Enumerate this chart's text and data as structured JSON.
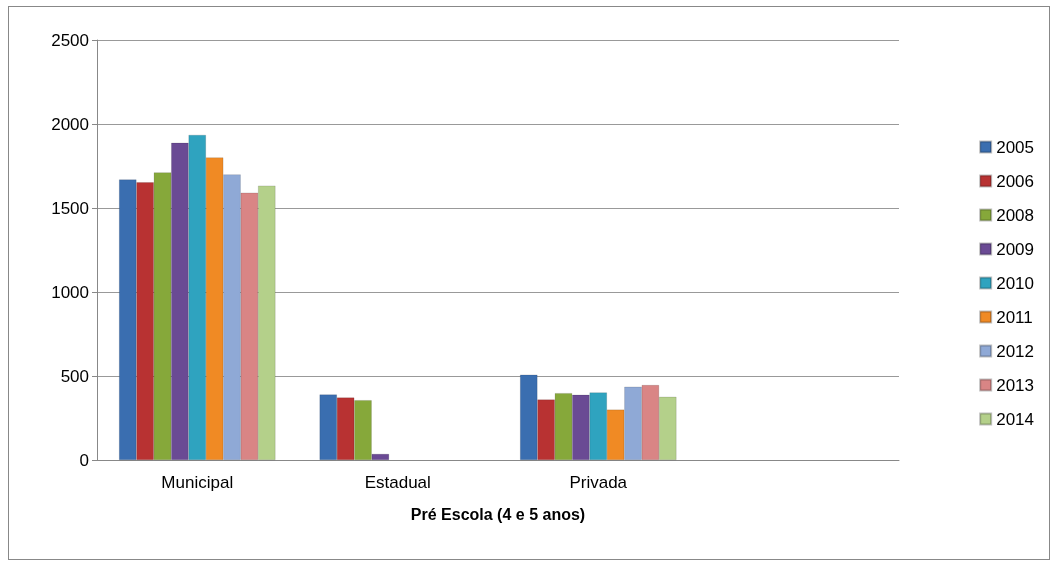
{
  "chart_data": {
    "type": "bar",
    "xlabel": "Pré Escola (4 e 5 anos)",
    "categories": [
      "Municipal",
      "Estadual",
      "Privada",
      null
    ],
    "series": [
      {
        "name": "2005",
        "color": "#3a6eb0",
        "values": [
          1670,
          390,
          508,
          null
        ]
      },
      {
        "name": "2006",
        "color": "#b83232",
        "values": [
          1653,
          372,
          360,
          null
        ]
      },
      {
        "name": "2008",
        "color": "#86a83a",
        "values": [
          1712,
          356,
          398,
          null
        ]
      },
      {
        "name": "2009",
        "color": "#6a4a94",
        "values": [
          1888,
          36,
          388,
          null
        ]
      },
      {
        "name": "2010",
        "color": "#2fa3bf",
        "values": [
          1935,
          null,
          402,
          null
        ]
      },
      {
        "name": "2011",
        "color": "#f08a24",
        "values": [
          1801,
          null,
          300,
          null
        ]
      },
      {
        "name": "2012",
        "color": "#8fa9d6",
        "values": [
          1700,
          null,
          436,
          null
        ]
      },
      {
        "name": "2013",
        "color": "#d98585",
        "values": [
          1591,
          null,
          446,
          null
        ]
      },
      {
        "name": "2014",
        "color": "#b4d08a",
        "values": [
          1633,
          null,
          376,
          null
        ]
      }
    ],
    "ylim": [
      0,
      2500
    ],
    "yticks": [
      0,
      500,
      1000,
      1500,
      2000,
      2500
    ],
    "grid": "y",
    "legend": "right"
  }
}
